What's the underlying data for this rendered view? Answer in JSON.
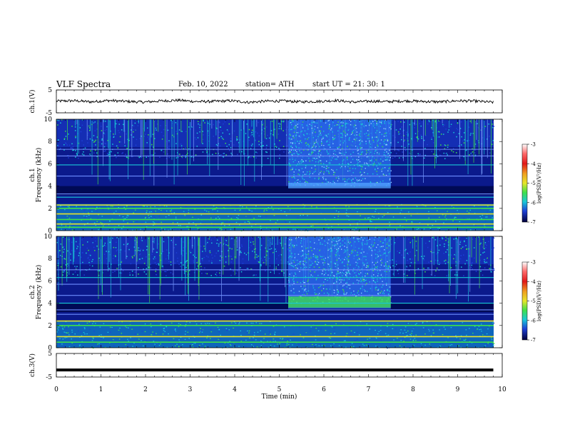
{
  "header": {
    "title": "VLF  Spectra",
    "date": "Feb. 10, 2022",
    "station": "station= ATH",
    "start": "start  UT  =    21: 30: 1"
  },
  "chart_data": [
    {
      "type": "line",
      "name": "ch1-waveform",
      "ylabel": "ch.1(V)",
      "ylim": [
        -5,
        5
      ],
      "yticks": [
        "5",
        "-5"
      ],
      "x_range": [
        0,
        9.8
      ],
      "y_values_approx": [
        0.1,
        0.3,
        -0.2,
        0.4,
        0.0,
        -0.3,
        0.2,
        0.5,
        -0.1,
        0.0,
        0.3,
        -0.4,
        0.1,
        0.2,
        -0.2,
        0.0,
        0.4,
        -0.3,
        0.1,
        -0.1,
        0.2,
        0.0,
        -0.2,
        0.3,
        0.1,
        -0.4
      ]
    },
    {
      "type": "heatmap",
      "name": "ch1-spectrogram",
      "ylabel": "ch.1\nFrequency (kHz)",
      "ylim": [
        0,
        10
      ],
      "yticks": [
        "0",
        "2",
        "4",
        "6",
        "8",
        "10"
      ],
      "xlim": [
        0,
        9.8
      ],
      "colorbar": {
        "label": "log(PSD)(V²/Hz)",
        "range": [
          -7,
          -3
        ],
        "ticks": [
          "-3",
          "-4",
          "-5",
          "-6",
          "-7"
        ]
      },
      "features": {
        "enhanced_activity_interval_min": [
          5.2,
          7.5
        ],
        "line_frequencies_khz": [
          0.3,
          0.6,
          1.0,
          1.5,
          2.0,
          2.3,
          3.0,
          3.3,
          4.9,
          5.9,
          6.7,
          7.3
        ]
      }
    },
    {
      "type": "heatmap",
      "name": "ch2-spectrogram",
      "ylabel": "ch.2\nFrequency (kHz)",
      "ylim": [
        0,
        10
      ],
      "yticks": [
        "0",
        "2",
        "4",
        "6",
        "8",
        "10"
      ],
      "xlim": [
        0,
        9.8
      ],
      "colorbar": {
        "label": "log(PSD)(V²/Hz)",
        "range": [
          -7,
          -3
        ],
        "ticks": [
          "-3",
          "-4",
          "-5",
          "-6",
          "-7"
        ]
      },
      "features": {
        "enhanced_activity_interval_min": [
          5.2,
          7.5
        ],
        "line_frequencies_khz": [
          0.5,
          1.0,
          2.0,
          2.4,
          3.0,
          3.4,
          4.0,
          4.7,
          5.7,
          6.3,
          7.0
        ]
      }
    },
    {
      "type": "line",
      "name": "ch3-waveform",
      "ylabel": "ch.3(V)",
      "ylim": [
        -5,
        5
      ],
      "yticks": [
        "5",
        "-5"
      ],
      "x_range": [
        0,
        9.8
      ],
      "y_value_constant": -2.0
    }
  ],
  "x_axis": {
    "label": "Time  (min)",
    "ticks": [
      "0",
      "1",
      "2",
      "3",
      "4",
      "5",
      "6",
      "7",
      "8",
      "9",
      "10"
    ],
    "range": [
      0,
      10
    ]
  },
  "colors": {
    "background": "#00003a",
    "deep_blue": "#0b1a8c",
    "blue": "#1e3fd6",
    "cyan": "#19c8d8",
    "green": "#3fe04a",
    "yellow": "#e6e62a",
    "red": "#e01818"
  }
}
